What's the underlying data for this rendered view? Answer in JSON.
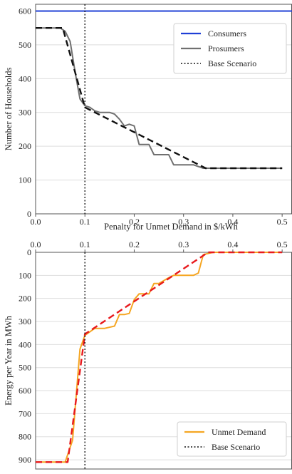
{
  "chart_data": [
    {
      "type": "line",
      "title": "",
      "xlabel": "Penalty for Unmet Demand in $/kWh",
      "ylabel": "Number of Households",
      "xlim": [
        0.0,
        0.52
      ],
      "ylim": [
        0,
        620
      ],
      "xticks": [
        "0.0",
        "0.1",
        "0.2",
        "0.3",
        "0.4",
        "0.5"
      ],
      "yticks": [
        "0",
        "100",
        "200",
        "300",
        "400",
        "500",
        "600"
      ],
      "grid": "horizontal",
      "legend": "top-right",
      "legend_entries": [
        "Consumers",
        "Prosumers",
        "Base Scenario"
      ],
      "series": [
        {
          "name": "Consumers",
          "style": "solid",
          "color": "#1f3fd6",
          "x": [
            0.0,
            0.52
          ],
          "y": [
            600,
            600
          ]
        },
        {
          "name": "Prosumers",
          "style": "solid",
          "color": "#707070",
          "x": [
            0.0,
            0.05,
            0.06,
            0.07,
            0.08,
            0.09,
            0.1,
            0.11,
            0.12,
            0.13,
            0.14,
            0.15,
            0.16,
            0.17,
            0.18,
            0.19,
            0.2,
            0.21,
            0.22,
            0.23,
            0.24,
            0.25,
            0.26,
            0.27,
            0.28,
            0.3,
            0.32,
            0.34,
            0.36,
            0.4,
            0.45,
            0.5
          ],
          "y": [
            550,
            550,
            540,
            510,
            420,
            340,
            320,
            315,
            305,
            300,
            300,
            300,
            295,
            280,
            260,
            265,
            260,
            205,
            205,
            205,
            175,
            175,
            175,
            175,
            145,
            145,
            145,
            135,
            135,
            135,
            135,
            135
          ]
        },
        {
          "name": "",
          "style": "dashed",
          "color": "#111111",
          "x": [
            0.0,
            0.055,
            0.1,
            0.345,
            0.5
          ],
          "y": [
            550,
            550,
            315,
            135,
            135
          ]
        }
      ],
      "vline": {
        "name": "Base Scenario",
        "style": "dotted",
        "x": 0.1
      }
    },
    {
      "type": "line",
      "title": "",
      "xlabel": "",
      "ylabel": "Energy per Year in MWh",
      "xlim": [
        0.0,
        0.52
      ],
      "ylim": [
        0,
        940
      ],
      "y_inverted": true,
      "x_axis_position": "top",
      "xticks": [
        "0.0",
        "0.1",
        "0.2",
        "0.3",
        "0.4",
        "0.5"
      ],
      "yticks": [
        "0",
        "100",
        "200",
        "300",
        "400",
        "500",
        "600",
        "700",
        "800",
        "900"
      ],
      "grid": "horizontal",
      "legend": "bottom-right",
      "legend_entries": [
        "Unmet Demand",
        "Base Scenario"
      ],
      "series": [
        {
          "name": "Unmet Demand",
          "style": "solid",
          "color": "#f5a623",
          "x": [
            0.0,
            0.04,
            0.06,
            0.075,
            0.09,
            0.1,
            0.12,
            0.14,
            0.16,
            0.17,
            0.18,
            0.19,
            0.2,
            0.21,
            0.22,
            0.23,
            0.24,
            0.25,
            0.27,
            0.28,
            0.3,
            0.32,
            0.33,
            0.34,
            0.36,
            0.4,
            0.45,
            0.5
          ],
          "y": [
            910,
            910,
            910,
            815,
            420,
            360,
            330,
            330,
            320,
            270,
            270,
            265,
            205,
            180,
            180,
            180,
            135,
            135,
            110,
            100,
            100,
            100,
            90,
            10,
            0,
            0,
            0,
            0
          ]
        },
        {
          "name": "",
          "style": "dashed",
          "color": "#e8191d",
          "x": [
            0.0,
            0.065,
            0.1,
            0.35,
            0.5
          ],
          "y": [
            910,
            910,
            355,
            0,
            0
          ]
        }
      ],
      "vline": {
        "name": "Base Scenario",
        "style": "dotted",
        "x": 0.1
      }
    }
  ]
}
